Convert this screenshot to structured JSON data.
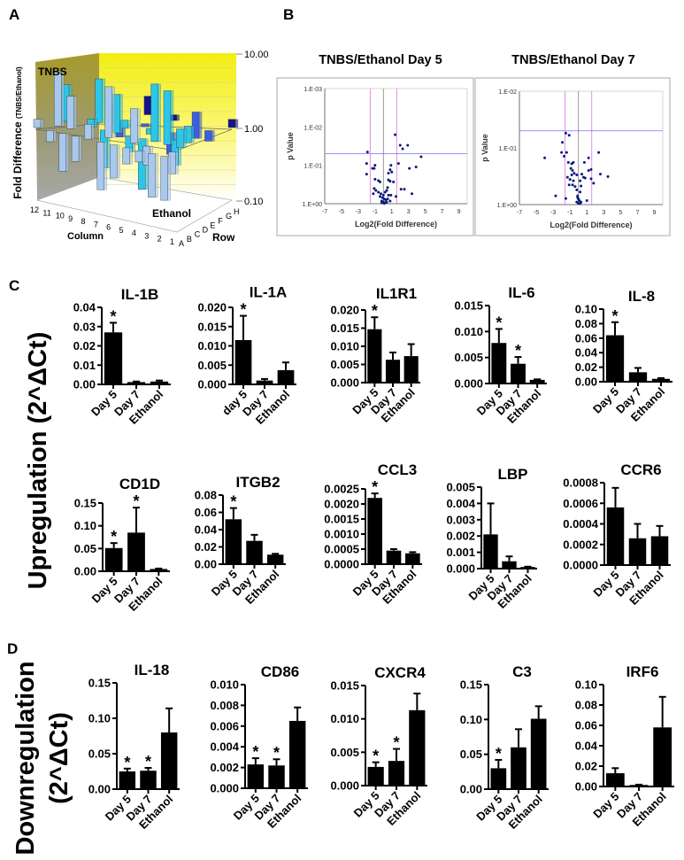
{
  "panel_labels": {
    "a": "A",
    "b": "B",
    "c": "C",
    "d": "D"
  },
  "side_labels": {
    "upregulation": "Upregulation (2^ΔCt)",
    "downregulation_1": "Downregulation",
    "downregulation_2": "(2^ΔCt)"
  },
  "colors": {
    "bar": "#000000",
    "volcano_point": "#0a1a7a",
    "threshold_fc": "#e070e0",
    "threshold_p": "#7070ff",
    "zero_line": "#808080",
    "row_colors": [
      "#a9c8ee",
      "#2cc6e8",
      "#3b5fe0",
      "#14148a"
    ]
  },
  "chart_data": [
    {
      "id": "A",
      "type": "bar3d",
      "title": "",
      "ylabel": "Fold Difference",
      "ylabel_sub": "(TNBS/Ethanol)",
      "yscale": "log",
      "ylim": [
        0.1,
        10
      ],
      "yticks": [
        "10.00",
        "1.00",
        "0.10"
      ],
      "xlabel": "Column",
      "x_ticks": [
        "12",
        "11",
        "10",
        "9",
        "8",
        "7",
        "6",
        "5",
        "4",
        "3",
        "2",
        "1"
      ],
      "zlabel": "Row",
      "z_ticks": [
        "A",
        "B",
        "C",
        "D",
        "E",
        "F",
        "G",
        "H"
      ],
      "annotations": {
        "top": "TNBS",
        "bottom": "Ethanol"
      },
      "bars_estimated": [
        {
          "col": 12,
          "row": "A",
          "value": 1.3
        },
        {
          "col": 11,
          "row": "A",
          "value": 0.7
        },
        {
          "col": 10,
          "row": "A",
          "value": 0.3
        },
        {
          "col": 9,
          "row": "A",
          "value": 0.45
        },
        {
          "col": 8,
          "row": "A",
          "value": 1.6
        },
        {
          "col": 7,
          "row": "A",
          "value": 0.22
        },
        {
          "col": 6,
          "row": "A",
          "value": 0.35
        },
        {
          "col": 5,
          "row": "A",
          "value": 0.6
        },
        {
          "col": 4,
          "row": "A",
          "value": 0.7
        },
        {
          "col": 3,
          "row": "A",
          "value": 0.25
        },
        {
          "col": 2,
          "row": "A",
          "value": 0.25
        },
        {
          "col": 11,
          "row": "B",
          "value": 5.5
        },
        {
          "col": 10,
          "row": "B",
          "value": 2.8
        },
        {
          "col": 7,
          "row": "B",
          "value": 5.0
        },
        {
          "col": 5,
          "row": "B",
          "value": 3.0
        },
        {
          "col": 4,
          "row": "B",
          "value": 0.55
        },
        {
          "col": 2,
          "row": "B",
          "value": 0.5
        },
        {
          "col": 11,
          "row": "C",
          "value": 3.2
        },
        {
          "col": 9,
          "row": "C",
          "value": 1.3
        },
        {
          "col": 8,
          "row": "C",
          "value": 0.3
        },
        {
          "col": 7,
          "row": "C",
          "value": 3.4
        },
        {
          "col": 6,
          "row": "C",
          "value": 0.6
        },
        {
          "col": 5,
          "row": "C",
          "value": 0.2
        },
        {
          "col": 4,
          "row": "C",
          "value": 6.2
        },
        {
          "col": 3,
          "row": "C",
          "value": 5.5
        },
        {
          "col": 2,
          "row": "C",
          "value": 1.8
        },
        {
          "col": 9,
          "row": "D",
          "value": 4.0
        },
        {
          "col": 8,
          "row": "D",
          "value": 2.0
        },
        {
          "col": 7,
          "row": "D",
          "value": 1.3
        },
        {
          "col": 5,
          "row": "D",
          "value": 1.2
        },
        {
          "col": 3,
          "row": "D",
          "value": 0.45
        },
        {
          "col": 2,
          "row": "D",
          "value": 1.7
        },
        {
          "col": 8,
          "row": "E",
          "value": 0.6
        },
        {
          "col": 6,
          "row": "E",
          "value": 1.1
        },
        {
          "col": 4,
          "row": "E",
          "value": 0.5
        },
        {
          "col": 2,
          "row": "E",
          "value": 2.3
        },
        {
          "col": 1,
          "row": "E",
          "value": 1.4
        },
        {
          "col": 7,
          "row": "G",
          "value": 1.8
        },
        {
          "col": 5,
          "row": "G",
          "value": 1.2
        },
        {
          "col": 1,
          "row": "H",
          "value": 1.3
        }
      ]
    },
    {
      "id": "B1",
      "type": "scatter",
      "title": "TNBS/Ethanol Day 5",
      "xlabel": "Log2(Fold Difference)",
      "ylabel": "p Value",
      "xlim": [
        -7,
        10
      ],
      "xticks": [
        "-7",
        "-5",
        "-3",
        "-1",
        "1",
        "3",
        "5",
        "7",
        "9"
      ],
      "yscale": "log-reversed",
      "ylim": [
        1,
        0.001
      ],
      "yticks": [
        "1.E-03",
        "1.E-02",
        "1.E-01",
        "1.E+00"
      ],
      "thresholds": {
        "log2fc": [
          -1.58,
          1.58
        ],
        "p": 0.05
      },
      "points": [
        [
          1.4,
          0.016
        ],
        [
          2.0,
          0.03
        ],
        [
          2.3,
          0.037
        ],
        [
          2.9,
          0.03
        ],
        [
          4.5,
          0.06
        ],
        [
          -1.9,
          0.045
        ],
        [
          -2.0,
          0.09
        ],
        [
          -1.3,
          0.12
        ],
        [
          -1.1,
          0.12
        ],
        [
          -1.0,
          0.1
        ],
        [
          -2.0,
          0.17
        ],
        [
          0.9,
          0.1
        ],
        [
          1.8,
          0.09
        ],
        [
          3.1,
          0.12
        ],
        [
          3.9,
          0.11
        ],
        [
          0.8,
          0.13
        ],
        [
          1.0,
          0.15
        ],
        [
          0.6,
          0.16
        ],
        [
          -1.0,
          0.23
        ],
        [
          -0.6,
          0.25
        ],
        [
          -0.4,
          0.27
        ],
        [
          0.6,
          0.24
        ],
        [
          0.8,
          0.26
        ],
        [
          1.2,
          0.27
        ],
        [
          2.1,
          0.42
        ],
        [
          2.5,
          0.42
        ],
        [
          3.4,
          0.55
        ],
        [
          1.5,
          0.65
        ],
        [
          -1.1,
          0.4
        ],
        [
          -0.9,
          0.45
        ],
        [
          -0.6,
          0.5
        ],
        [
          -0.3,
          0.55
        ],
        [
          0,
          0.6
        ],
        [
          0.2,
          0.5
        ],
        [
          0.4,
          0.45
        ],
        [
          0.6,
          0.6
        ],
        [
          0.9,
          0.6
        ],
        [
          -0.1,
          0.7
        ],
        [
          0.1,
          0.75
        ],
        [
          0.3,
          0.8
        ],
        [
          -0.2,
          0.85
        ],
        [
          0,
          0.9
        ],
        [
          0.2,
          0.95
        ],
        [
          0.5,
          0.75
        ],
        [
          0.8,
          0.85
        ],
        [
          -0.4,
          0.65
        ],
        [
          -0.2,
          0.95
        ],
        [
          0.1,
          0.98
        ],
        [
          0.4,
          0.92
        ],
        [
          -1.2,
          0.55
        ],
        [
          0.5,
          0.38
        ]
      ]
    },
    {
      "id": "B2",
      "type": "scatter",
      "title": "TNBS/Ethanol Day 7",
      "xlabel": "Log2(Fold Difference)",
      "ylabel": "p Value",
      "xlim": [
        -7,
        10
      ],
      "xticks": [
        "-7",
        "-5",
        "-3",
        "-1",
        "1",
        "3",
        "5",
        "7",
        "9"
      ],
      "yscale": "log-reversed",
      "ylim": [
        1,
        0.01
      ],
      "yticks": [
        "1.E-02",
        "1.E-01",
        "1.E+00"
      ],
      "thresholds": {
        "log2fc": [
          -1.58,
          1.58
        ],
        "p": 0.05
      },
      "points": [
        [
          -1.5,
          0.055
        ],
        [
          -1.1,
          0.06
        ],
        [
          -1.9,
          0.08
        ],
        [
          -2.0,
          0.12
        ],
        [
          -1.4,
          0.12
        ],
        [
          -1.7,
          0.14
        ],
        [
          -4.0,
          0.15
        ],
        [
          -1.2,
          0.18
        ],
        [
          -0.8,
          0.19
        ],
        [
          -0.6,
          0.18
        ],
        [
          0.7,
          0.18
        ],
        [
          1.2,
          0.15
        ],
        [
          2.4,
          0.12
        ],
        [
          -0.9,
          0.23
        ],
        [
          -0.7,
          0.25
        ],
        [
          -0.5,
          0.28
        ],
        [
          -0.8,
          0.3
        ],
        [
          -0.2,
          0.3
        ],
        [
          0.4,
          0.29
        ],
        [
          1.2,
          0.25
        ],
        [
          1.5,
          0.24
        ],
        [
          2.6,
          0.29
        ],
        [
          3.5,
          0.32
        ],
        [
          -1.3,
          0.33
        ],
        [
          -1.0,
          0.36
        ],
        [
          -0.6,
          0.38
        ],
        [
          0.2,
          0.38
        ],
        [
          0.6,
          0.33
        ],
        [
          0.8,
          0.34
        ],
        [
          1.5,
          0.35
        ],
        [
          1.8,
          0.42
        ],
        [
          -1.1,
          0.45
        ],
        [
          -0.7,
          0.45
        ],
        [
          -0.4,
          0.48
        ],
        [
          0.3,
          0.47
        ],
        [
          -0.2,
          0.55
        ],
        [
          0.2,
          0.6
        ],
        [
          -2.7,
          0.7
        ],
        [
          -1.5,
          0.78
        ],
        [
          -0.1,
          0.7
        ],
        [
          0,
          0.8
        ],
        [
          0.1,
          0.85
        ],
        [
          -0.2,
          0.9
        ],
        [
          0.3,
          0.9
        ],
        [
          1.0,
          0.85
        ],
        [
          0,
          0.95
        ],
        [
          -0.1,
          0.75
        ],
        [
          0.2,
          0.95
        ]
      ]
    },
    {
      "id": "IL-1B",
      "type": "bar",
      "title": "IL-1B",
      "categories": [
        "Day 5",
        "Day 7",
        "Ethanol"
      ],
      "values": [
        0.027,
        0.0012,
        0.0015
      ],
      "errors": [
        0.005,
        0.0003,
        0.0005
      ],
      "significant": [
        true,
        false,
        false
      ],
      "ylim": [
        0,
        0.04
      ],
      "yticks": [
        "0.00",
        "0.01",
        "0.02",
        "0.03",
        "0.04"
      ]
    },
    {
      "id": "IL-1A",
      "type": "bar",
      "title": "IL-1A",
      "categories": [
        "day 5",
        "Day 7",
        "Ethanol"
      ],
      "values": [
        0.0115,
        0.001,
        0.0037
      ],
      "errors": [
        0.0063,
        0.0004,
        0.002
      ],
      "significant": [
        true,
        false,
        false
      ],
      "ylim": [
        0,
        0.02
      ],
      "yticks": [
        "0.000",
        "0.005",
        "0.010",
        "0.015",
        "0.020"
      ]
    },
    {
      "id": "IL1R1",
      "type": "bar",
      "title": "IL1R1",
      "categories": [
        "Day 5",
        "Day 7",
        "Ethanol"
      ],
      "values": [
        0.0147,
        0.0063,
        0.0073
      ],
      "errors": [
        0.0033,
        0.002,
        0.0033
      ],
      "significant": [
        true,
        false,
        false
      ],
      "ylim": [
        0,
        0.02
      ],
      "yticks": [
        "0.000",
        "0.005",
        "0.010",
        "0.015",
        "0.020"
      ]
    },
    {
      "id": "IL-6",
      "type": "bar",
      "title": "IL-6",
      "categories": [
        "Day 5",
        "Day 7",
        "Ethanol"
      ],
      "values": [
        0.0078,
        0.0038,
        0.0007
      ],
      "errors": [
        0.0027,
        0.0013,
        0.0001
      ],
      "significant": [
        true,
        true,
        false
      ],
      "ylim": [
        0,
        0.015
      ],
      "yticks": [
        "0.000",
        "0.005",
        "0.010",
        "0.015"
      ]
    },
    {
      "id": "IL-8",
      "type": "bar",
      "title": "IL-8",
      "categories": [
        "Day 5",
        "Day 7",
        "Ethanol"
      ],
      "values": [
        0.064,
        0.013,
        0.004
      ],
      "errors": [
        0.018,
        0.006,
        0.001
      ],
      "significant": [
        true,
        false,
        false
      ],
      "ylim": [
        0,
        0.1
      ],
      "yticks": [
        "0.00",
        "0.02",
        "0.04",
        "0.06",
        "0.08",
        "0.10"
      ]
    },
    {
      "id": "CD1D",
      "type": "bar",
      "title": "CD1D",
      "categories": [
        "Day 5",
        "Day 7",
        "Ethanol"
      ],
      "values": [
        0.051,
        0.085,
        0.005
      ],
      "errors": [
        0.011,
        0.055,
        0.001
      ],
      "significant": [
        true,
        true,
        false
      ],
      "ylim": [
        0,
        0.15
      ],
      "yticks": [
        "0.00",
        "0.05",
        "0.10",
        "0.15"
      ]
    },
    {
      "id": "ITGB2",
      "type": "bar",
      "title": "ITGB2",
      "categories": [
        "Day 5",
        "Day 7",
        "Ethanol"
      ],
      "values": [
        0.052,
        0.027,
        0.011
      ],
      "errors": [
        0.013,
        0.007,
        0.001
      ],
      "significant": [
        true,
        false,
        false
      ],
      "ylim": [
        0,
        0.08
      ],
      "yticks": [
        "0.00",
        "0.02",
        "0.04",
        "0.06",
        "0.08"
      ]
    },
    {
      "id": "CCL3",
      "type": "bar",
      "title": "CCL3",
      "categories": [
        "Day 5",
        "Day 7",
        "Ethanol"
      ],
      "values": [
        0.0022,
        0.00045,
        0.00036
      ],
      "errors": [
        0.00015,
        5e-05,
        4e-05
      ],
      "significant": [
        true,
        false,
        false
      ],
      "ylim": [
        0,
        0.0025
      ],
      "yticks": [
        "0.0000",
        "0.0005",
        "0.0010",
        "0.0015",
        "0.0020",
        "0.0025"
      ]
    },
    {
      "id": "LBP",
      "type": "bar",
      "title": "LBP",
      "categories": [
        "Day 5",
        "Day 7",
        "Ethanol"
      ],
      "values": [
        0.0021,
        0.00045,
        0.0001
      ],
      "errors": [
        0.0019,
        0.0003,
        2e-05
      ],
      "significant": [
        false,
        false,
        false
      ],
      "ylim": [
        0,
        0.005
      ],
      "yticks": [
        "0.000",
        "0.001",
        "0.002",
        "0.003",
        "0.004",
        "0.005"
      ]
    },
    {
      "id": "CCR6",
      "type": "bar",
      "title": "CCR6",
      "categories": [
        "Day 5",
        "Day 7",
        "Ethanol"
      ],
      "values": [
        0.00056,
        0.00026,
        0.00028
      ],
      "errors": [
        0.00019,
        0.00014,
        0.0001
      ],
      "significant": [
        false,
        false,
        false
      ],
      "ylim": [
        0,
        0.0008
      ],
      "yticks": [
        "0.0000",
        "0.0002",
        "0.0004",
        "0.0006",
        "0.0008"
      ]
    },
    {
      "id": "IL-18",
      "type": "bar",
      "title": "IL-18",
      "categories": [
        "Day 5",
        "Day 7",
        "Ethanol"
      ],
      "values": [
        0.025,
        0.026,
        0.08
      ],
      "errors": [
        0.004,
        0.004,
        0.034
      ],
      "significant": [
        true,
        true,
        false
      ],
      "ylim": [
        0,
        0.15
      ],
      "yticks": [
        "0.00",
        "0.05",
        "0.10",
        "0.15"
      ]
    },
    {
      "id": "CD86",
      "type": "bar",
      "title": "CD86",
      "categories": [
        "Day 5",
        "Day 7",
        "Ethanol"
      ],
      "values": [
        0.0023,
        0.0022,
        0.0065
      ],
      "errors": [
        0.0006,
        0.0006,
        0.0013
      ],
      "significant": [
        true,
        true,
        false
      ],
      "ylim": [
        0,
        0.01
      ],
      "yticks": [
        "0.000",
        "0.002",
        "0.004",
        "0.006",
        "0.008",
        "0.010"
      ]
    },
    {
      "id": "CXCR4",
      "type": "bar",
      "title": "CXCR4",
      "categories": [
        "Day 5",
        "Day 7",
        "Ethanol"
      ],
      "values": [
        0.0028,
        0.0037,
        0.0113
      ],
      "errors": [
        0.0007,
        0.0018,
        0.0025
      ],
      "significant": [
        true,
        true,
        false
      ],
      "ylim": [
        0,
        0.015
      ],
      "yticks": [
        "0.000",
        "0.005",
        "0.010",
        "0.015"
      ]
    },
    {
      "id": "C3",
      "type": "bar",
      "title": "C3",
      "categories": [
        "Day 5",
        "Day 7",
        "Ethanol"
      ],
      "values": [
        0.03,
        0.06,
        0.101
      ],
      "errors": [
        0.012,
        0.026,
        0.018
      ],
      "significant": [
        true,
        false,
        false
      ],
      "ylim": [
        0,
        0.15
      ],
      "yticks": [
        "0.00",
        "0.05",
        "0.10",
        "0.15"
      ]
    },
    {
      "id": "IRF6",
      "type": "bar",
      "title": "IRF6",
      "categories": [
        "Day 5",
        "Day 7",
        "Ethanol"
      ],
      "values": [
        0.013,
        0.0015,
        0.058
      ],
      "errors": [
        0.005,
        0.0003,
        0.03
      ],
      "significant": [
        false,
        false,
        false
      ],
      "ylim": [
        0,
        0.1
      ],
      "yticks": [
        "0.00",
        "0.02",
        "0.04",
        "0.06",
        "0.08",
        "0.10"
      ]
    }
  ]
}
